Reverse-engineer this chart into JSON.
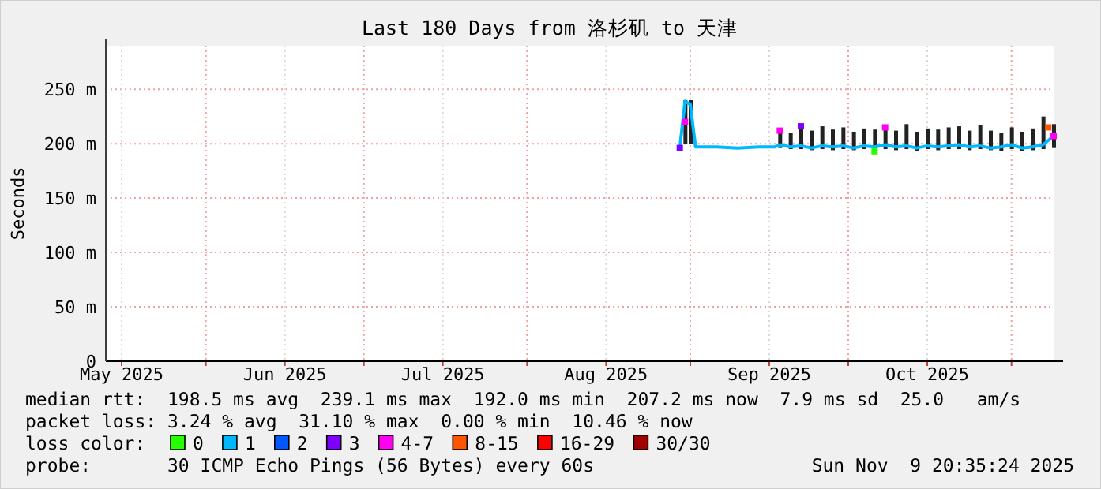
{
  "chart_data": {
    "type": "line",
    "title": "Last 180 Days from 洛杉矶 to 天津",
    "ylabel": "Seconds",
    "legend_title": "loss color:",
    "legend": "bottom",
    "grid": true,
    "xlim": [
      "2025-05-13",
      "2025-11-09"
    ],
    "xticks": [
      {
        "value": "2025-05-16",
        "label": "May 2025"
      },
      {
        "value": "2025-06-01",
        "label": null
      },
      {
        "value": "2025-06-16",
        "label": "Jun 2025"
      },
      {
        "value": "2025-07-01",
        "label": null
      },
      {
        "value": "2025-07-16",
        "label": "Jul 2025"
      },
      {
        "value": "2025-08-01",
        "label": null
      },
      {
        "value": "2025-08-16",
        "label": "Aug 2025"
      },
      {
        "value": "2025-09-01",
        "label": null
      },
      {
        "value": "2025-09-16",
        "label": "Sep 2025"
      },
      {
        "value": "2025-10-01",
        "label": null
      },
      {
        "value": "2025-10-16",
        "label": "Oct 2025"
      },
      {
        "value": "2025-11-01",
        "label": null
      }
    ],
    "ylim": [
      0,
      290
    ],
    "yticks": [
      0,
      {
        "value": 50,
        "label": "50 m"
      },
      {
        "value": 100,
        "label": "100 m"
      },
      {
        "value": 150,
        "label": "150 m"
      },
      {
        "value": 200,
        "label": "200 m"
      },
      {
        "value": 250,
        "label": "250 m"
      }
    ],
    "series": [
      {
        "name": "0",
        "type": "scatter",
        "color": "#26ff00",
        "marker": "square",
        "x": [
          "2025-10-06"
        ],
        "values": [
          193
        ]
      },
      {
        "name": "1",
        "color": "#00b8ff",
        "marker": "none",
        "x": [
          "2025-08-30",
          "2025-08-31",
          "2025-09-01",
          "2025-09-02",
          "2025-09-06",
          "2025-09-10",
          "2025-09-14",
          "2025-09-17",
          "2025-09-18",
          "2025-09-20",
          "2025-09-22",
          "2025-09-24",
          "2025-09-26",
          "2025-09-28",
          "2025-09-30",
          "2025-10-02",
          "2025-10-04",
          "2025-10-06",
          "2025-10-08",
          "2025-10-10",
          "2025-10-12",
          "2025-10-14",
          "2025-10-16",
          "2025-10-18",
          "2025-10-20",
          "2025-10-22",
          "2025-10-24",
          "2025-10-26",
          "2025-10-28",
          "2025-10-30",
          "2025-11-01",
          "2025-11-03",
          "2025-11-05",
          "2025-11-07",
          "2025-11-09"
        ],
        "values": [
          196,
          239,
          236,
          197,
          197,
          196,
          197,
          197,
          199,
          197,
          198,
          196,
          198,
          197,
          198,
          196,
          198,
          197,
          199,
          197,
          198,
          196,
          198,
          197,
          198,
          199,
          197,
          198,
          196,
          197,
          199,
          196,
          197,
          199,
          207
        ],
        "lower": [
          null,
          200,
          200,
          null,
          null,
          null,
          null,
          null,
          196,
          195,
          195,
          194,
          195,
          194,
          195,
          194,
          195,
          193,
          195,
          194,
          195,
          193,
          195,
          194,
          195,
          195,
          194,
          195,
          194,
          193,
          195,
          193,
          194,
          195,
          196
        ],
        "upper": [
          null,
          240,
          240,
          null,
          null,
          null,
          null,
          null,
          214,
          210,
          218,
          212,
          216,
          213,
          215,
          211,
          214,
          213,
          217,
          212,
          218,
          211,
          214,
          213,
          215,
          216,
          212,
          217,
          212,
          210,
          215,
          211,
          214,
          225,
          218
        ]
      },
      {
        "name": "2",
        "type": "scatter",
        "color": "#0059ff",
        "marker": "square"
      },
      {
        "name": "3",
        "type": "scatter",
        "color": "#7e00ff",
        "marker": "square",
        "x": [
          "2025-08-30",
          "2025-09-22"
        ],
        "values": [
          196,
          216
        ]
      },
      {
        "name": "4-7",
        "type": "scatter",
        "color": "#ff00f0",
        "marker": "square",
        "x": [
          "2025-08-31",
          "2025-09-18",
          "2025-10-08",
          "2025-11-09"
        ],
        "values": [
          220,
          212,
          215,
          207
        ]
      },
      {
        "name": "8-15",
        "type": "scatter",
        "color": "#ff5500",
        "marker": "square",
        "x": [
          "2025-11-08"
        ],
        "values": [
          215
        ]
      },
      {
        "name": "16-29",
        "type": "scatter",
        "color": "#ff0000",
        "marker": "square"
      },
      {
        "name": "30/30",
        "type": "scatter",
        "color": "#a10000",
        "marker": "square"
      }
    ],
    "annotations": [
      "median rtt:  198.5 ms avg  239.1 ms max  192.0 ms min  207.2 ms now  7.9 ms sd  25.0   am/s",
      "packet loss: 3.24 % avg  31.10 % max  0.00 % min  10.46 % now",
      "probe:       30 ICMP Echo Pings (56 Bytes) every 60s",
      "Sun Nov  9 20:35:24 2025"
    ]
  }
}
